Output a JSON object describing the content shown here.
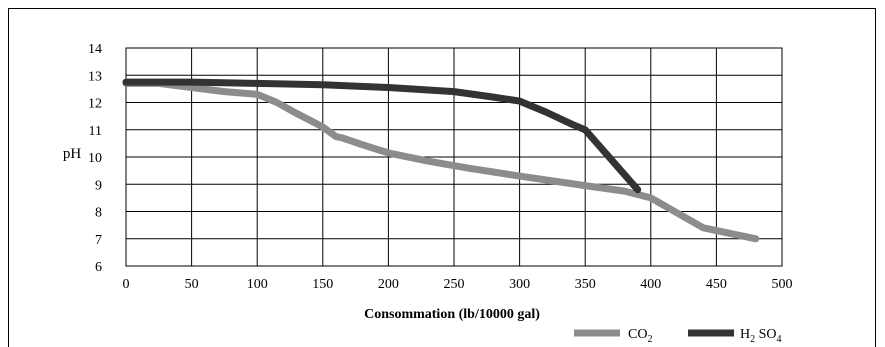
{
  "chart_data": {
    "type": "line",
    "title": "",
    "xlabel": "Consommation (lb/10000 gal)",
    "ylabel": "pH",
    "xlim": [
      0,
      500
    ],
    "ylim": [
      6,
      14
    ],
    "xticks": [
      0,
      50,
      100,
      150,
      200,
      250,
      300,
      350,
      400,
      450,
      500
    ],
    "yticks": [
      6,
      7,
      8,
      9,
      10,
      11,
      12,
      13,
      14
    ],
    "grid": true,
    "legend_position": "bottom-right",
    "series": [
      {
        "name": "CO2",
        "label_main": "CO",
        "label_sub": "2",
        "color": "#8c8c8c",
        "x": [
          0,
          25,
          50,
          75,
          100,
          115,
          130,
          150,
          160,
          165,
          180,
          200,
          230,
          260,
          300,
          350,
          380,
          400,
          420,
          440,
          460,
          480
        ],
        "y": [
          12.7,
          12.7,
          12.55,
          12.4,
          12.3,
          12.0,
          11.6,
          11.1,
          10.75,
          10.7,
          10.45,
          10.15,
          9.85,
          9.6,
          9.3,
          8.95,
          8.75,
          8.5,
          7.95,
          7.4,
          7.2,
          7.0
        ]
      },
      {
        "name": "H2SO4",
        "label_main": "H",
        "label_sub": "2",
        "label_rest": " SO",
        "label_sub2": "4",
        "color": "#333333",
        "x": [
          0,
          50,
          100,
          150,
          200,
          250,
          280,
          300,
          320,
          340,
          350,
          370,
          390
        ],
        "y": [
          12.75,
          12.75,
          12.7,
          12.65,
          12.55,
          12.4,
          12.2,
          12.05,
          11.65,
          11.2,
          11.0,
          9.9,
          8.8
        ]
      }
    ]
  }
}
